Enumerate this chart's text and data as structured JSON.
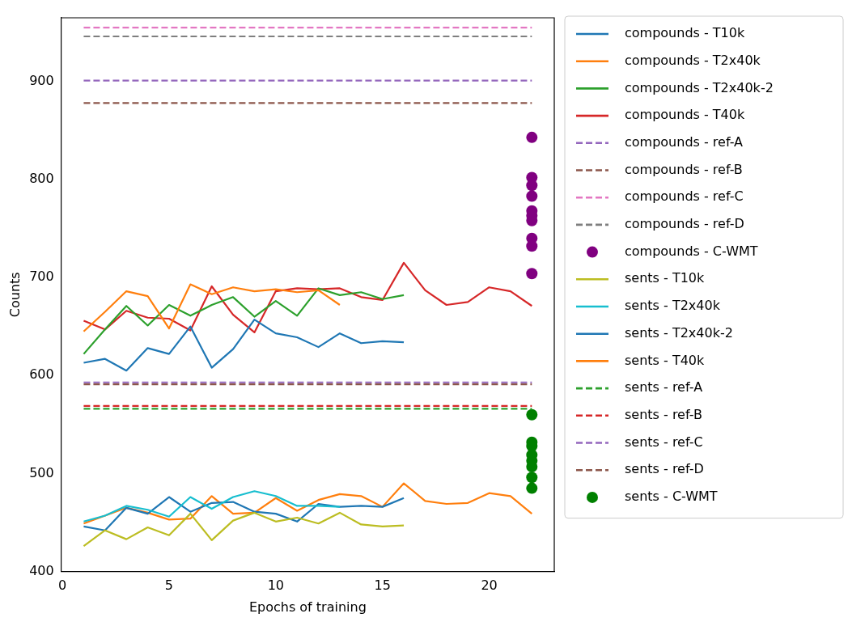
{
  "chart_data": {
    "type": "line",
    "xlabel": "Epochs of training",
    "ylabel": "Counts",
    "xlim": [
      -0.05,
      23.05
    ],
    "ylim": [
      400,
      965
    ],
    "xticks": [
      0,
      5,
      10,
      15,
      20
    ],
    "yticks": [
      400,
      500,
      600,
      700,
      800,
      900
    ],
    "grid": false,
    "legend": "right",
    "marker": "none",
    "series": [
      {
        "name": "compounds - T10k",
        "color": "#1f77b4",
        "x": [
          1,
          2,
          3,
          4,
          5,
          6,
          7,
          8,
          9,
          10,
          11,
          12,
          13,
          14,
          15,
          16
        ],
        "values": [
          613,
          617,
          605,
          628,
          622,
          650,
          608,
          627,
          657,
          643,
          639,
          629,
          643,
          633,
          635,
          634
        ]
      },
      {
        "name": "compounds - T2x40k",
        "color": "#ff7f0e",
        "x": [
          1,
          2,
          3,
          4,
          5,
          6,
          7,
          8,
          9,
          10,
          11,
          12,
          13
        ],
        "values": [
          645,
          665,
          686,
          681,
          648,
          693,
          683,
          690,
          686,
          688,
          685,
          687,
          672
        ]
      },
      {
        "name": "compounds - T2x40k-2",
        "color": "#2ca02c",
        "x": [
          1,
          2,
          3,
          4,
          5,
          6,
          7,
          8,
          9,
          10,
          11,
          12,
          13,
          14,
          15,
          16
        ],
        "values": [
          622,
          647,
          671,
          651,
          672,
          661,
          672,
          680,
          660,
          676,
          661,
          689,
          682,
          685,
          678,
          682
        ]
      },
      {
        "name": "compounds - T40k",
        "color": "#d62728",
        "x": [
          1,
          2,
          3,
          4,
          5,
          6,
          7,
          8,
          9,
          10,
          11,
          12,
          13,
          14,
          15,
          16,
          17,
          18,
          19,
          20,
          21,
          22
        ],
        "values": [
          656,
          647,
          666,
          659,
          658,
          646,
          691,
          662,
          644,
          686,
          689,
          688,
          689,
          680,
          677,
          715,
          687,
          672,
          675,
          690,
          686,
          671
        ]
      },
      {
        "name": "compounds - ref-A",
        "color": "#9467bd",
        "line_style": "dashed",
        "x": [
          1,
          22
        ],
        "values": [
          901,
          901
        ]
      },
      {
        "name": "compounds - ref-B",
        "color": "#8c564b",
        "line_style": "dashed",
        "x": [
          1,
          22
        ],
        "values": [
          878,
          878
        ]
      },
      {
        "name": "compounds - ref-C",
        "color": "#e377c2",
        "line_style": "dashed",
        "x": [
          1,
          22
        ],
        "values": [
          955,
          955
        ]
      },
      {
        "name": "compounds - ref-D",
        "color": "#7f7f7f",
        "line_style": "dashed",
        "x": [
          1,
          22
        ],
        "values": [
          946,
          946
        ]
      },
      {
        "name": "compounds - C-WMT",
        "color": "#800080",
        "type": "scatter",
        "marker": "circle",
        "x": [
          22,
          22,
          22,
          22,
          22,
          22,
          22,
          22,
          22,
          22
        ],
        "values": [
          843,
          802,
          794,
          783,
          768,
          763,
          758,
          740,
          732,
          704
        ]
      },
      {
        "name": "sents - T10k",
        "color": "#bcbd22",
        "x": [
          1,
          2,
          3,
          4,
          5,
          6,
          7,
          8,
          9,
          10,
          11,
          12,
          13,
          14,
          15,
          16
        ],
        "values": [
          426,
          442,
          433,
          445,
          437,
          459,
          432,
          452,
          460,
          451,
          455,
          449,
          460,
          448,
          446,
          447
        ]
      },
      {
        "name": "sents - T2x40k",
        "color": "#17becf",
        "x": [
          1,
          2,
          3,
          4,
          5,
          6,
          7,
          8,
          9,
          10,
          11,
          12,
          13
        ],
        "values": [
          451,
          457,
          467,
          463,
          456,
          476,
          464,
          476,
          482,
          477,
          467,
          467,
          466
        ]
      },
      {
        "name": "sents - T2x40k-2",
        "color": "#1f77b4",
        "x": [
          1,
          2,
          3,
          4,
          5,
          6,
          7,
          8,
          9,
          10,
          11,
          12,
          13,
          14,
          15,
          16
        ],
        "values": [
          446,
          442,
          465,
          459,
          476,
          461,
          470,
          471,
          461,
          459,
          451,
          469,
          466,
          467,
          466,
          475
        ]
      },
      {
        "name": "sents - T40k",
        "color": "#ff7f0e",
        "x": [
          1,
          2,
          3,
          4,
          5,
          6,
          7,
          8,
          9,
          10,
          11,
          12,
          13,
          14,
          15,
          16,
          17,
          18,
          19,
          20,
          21,
          22
        ],
        "values": [
          449,
          457,
          465,
          460,
          453,
          454,
          477,
          459,
          460,
          475,
          462,
          473,
          479,
          477,
          466,
          490,
          472,
          469,
          470,
          480,
          477,
          459
        ]
      },
      {
        "name": "sents - ref-A",
        "color": "#2ca02c",
        "line_style": "dashed",
        "x": [
          1,
          22
        ],
        "values": [
          566,
          566
        ]
      },
      {
        "name": "sents - ref-B",
        "color": "#d62728",
        "line_style": "dashed",
        "x": [
          1,
          22
        ],
        "values": [
          569,
          569
        ]
      },
      {
        "name": "sents - ref-C",
        "color": "#9467bd",
        "line_style": "dashed",
        "x": [
          1,
          22
        ],
        "values": [
          593,
          593
        ]
      },
      {
        "name": "sents - ref-D",
        "color": "#8c564b",
        "line_style": "dashed",
        "x": [
          1,
          22
        ],
        "values": [
          591,
          591
        ]
      },
      {
        "name": "sents - C-WMT",
        "color": "#008000",
        "type": "scatter",
        "marker": "circle",
        "x": [
          22,
          22,
          22,
          22,
          22,
          22,
          22,
          22
        ],
        "values": [
          560,
          532,
          528,
          519,
          513,
          507,
          496,
          485
        ]
      }
    ]
  }
}
